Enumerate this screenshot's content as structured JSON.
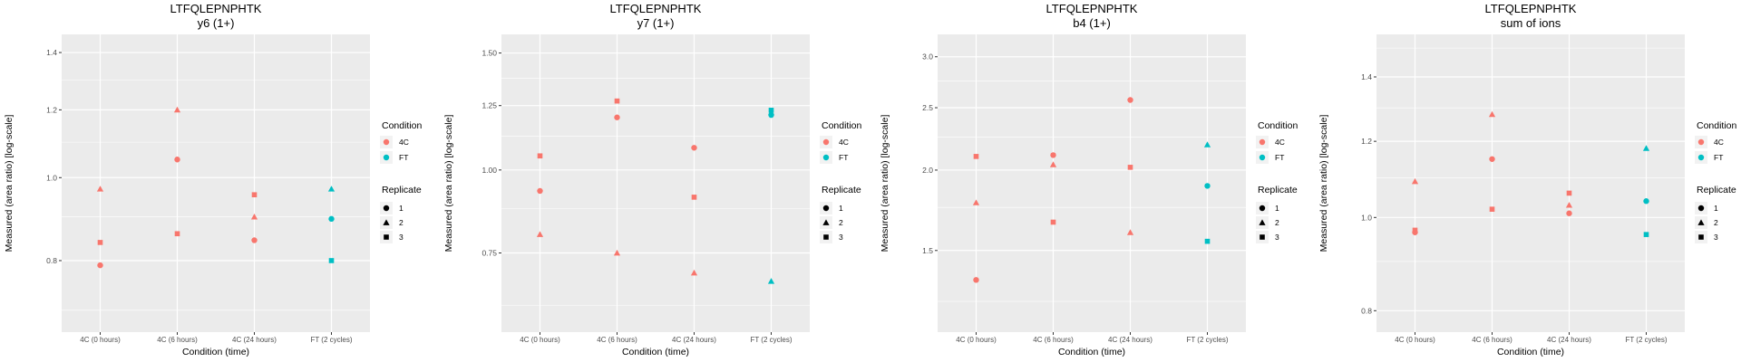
{
  "colors": {
    "condition_4C": "#F8766D",
    "condition_FT": "#00BFC4",
    "panel_bg": "#EBEBEB",
    "grid": "#FFFFFF"
  },
  "legend": {
    "condition_title": "Condition",
    "condition_entries": [
      "4C",
      "FT"
    ],
    "replicate_title": "Replicate",
    "replicate_entries": [
      "1",
      "2",
      "3"
    ],
    "replicate_shapes": [
      "circle",
      "triangle",
      "square"
    ]
  },
  "chart_data": [
    {
      "type": "scatter",
      "title": "LTFQLEPNPHTK",
      "subtitle": "y6 (1+)",
      "xlabel": "Condition (time)",
      "ylabel": "Measured (area ratio) [log-scale]",
      "yscale": "log",
      "ylim": [
        0.66,
        1.47
      ],
      "yticks": [
        0.8,
        1.0,
        1.2,
        1.4
      ],
      "ytick_labels": [
        "0.8",
        "1.0",
        "1.2",
        "1.4"
      ],
      "categories": [
        "4C (0 hours)",
        "4C (6 hours)",
        "4C (24 hours)",
        "FT (2 cycles)"
      ],
      "grid": true,
      "legend_position": "right",
      "points": [
        {
          "x": "4C (0 hours)",
          "y": 0.79,
          "condition": "4C",
          "replicate": "1"
        },
        {
          "x": "4C (0 hours)",
          "y": 0.97,
          "condition": "4C",
          "replicate": "2"
        },
        {
          "x": "4C (0 hours)",
          "y": 0.84,
          "condition": "4C",
          "replicate": "3"
        },
        {
          "x": "4C (6 hours)",
          "y": 1.05,
          "condition": "4C",
          "replicate": "1"
        },
        {
          "x": "4C (6 hours)",
          "y": 1.2,
          "condition": "4C",
          "replicate": "2"
        },
        {
          "x": "4C (6 hours)",
          "y": 0.86,
          "condition": "4C",
          "replicate": "3"
        },
        {
          "x": "4C (24 hours)",
          "y": 0.845,
          "condition": "4C",
          "replicate": "1"
        },
        {
          "x": "4C (24 hours)",
          "y": 0.9,
          "condition": "4C",
          "replicate": "2"
        },
        {
          "x": "4C (24 hours)",
          "y": 0.955,
          "condition": "4C",
          "replicate": "3"
        },
        {
          "x": "FT (2 cycles)",
          "y": 0.895,
          "condition": "FT",
          "replicate": "1"
        },
        {
          "x": "FT (2 cycles)",
          "y": 0.97,
          "condition": "FT",
          "replicate": "2"
        },
        {
          "x": "FT (2 cycles)",
          "y": 0.8,
          "condition": "FT",
          "replicate": "3"
        }
      ]
    },
    {
      "type": "scatter",
      "title": "LTFQLEPNPHTK",
      "subtitle": "y7 (1+)",
      "xlabel": "Condition (time)",
      "ylabel": "Measured (area ratio) [log-scale]",
      "yscale": "log",
      "ylim": [
        0.57,
        1.6
      ],
      "yticks": [
        0.75,
        1.0,
        1.25,
        1.5
      ],
      "ytick_labels": [
        "0.75",
        "1.00",
        "1.25",
        "1.50"
      ],
      "categories": [
        "4C (0 hours)",
        "4C (6 hours)",
        "4C (24 hours)",
        "FT (2 cycles)"
      ],
      "grid": true,
      "legend_position": "right",
      "points": [
        {
          "x": "4C (0 hours)",
          "y": 0.93,
          "condition": "4C",
          "replicate": "1"
        },
        {
          "x": "4C (0 hours)",
          "y": 0.8,
          "condition": "4C",
          "replicate": "2"
        },
        {
          "x": "4C (0 hours)",
          "y": 1.05,
          "condition": "4C",
          "replicate": "3"
        },
        {
          "x": "4C (6 hours)",
          "y": 1.2,
          "condition": "4C",
          "replicate": "1"
        },
        {
          "x": "4C (6 hours)",
          "y": 0.75,
          "condition": "4C",
          "replicate": "2"
        },
        {
          "x": "4C (6 hours)",
          "y": 1.27,
          "condition": "4C",
          "replicate": "3"
        },
        {
          "x": "4C (24 hours)",
          "y": 1.08,
          "condition": "4C",
          "replicate": "1"
        },
        {
          "x": "4C (24 hours)",
          "y": 0.7,
          "condition": "4C",
          "replicate": "2"
        },
        {
          "x": "4C (24 hours)",
          "y": 0.91,
          "condition": "4C",
          "replicate": "3"
        },
        {
          "x": "FT (2 cycles)",
          "y": 1.21,
          "condition": "FT",
          "replicate": "1"
        },
        {
          "x": "FT (2 cycles)",
          "y": 0.68,
          "condition": "FT",
          "replicate": "2"
        },
        {
          "x": "FT (2 cycles)",
          "y": 1.23,
          "condition": "FT",
          "replicate": "3"
        }
      ]
    },
    {
      "type": "scatter",
      "title": "LTFQLEPNPHTK",
      "subtitle": "b4 (1+)",
      "xlabel": "Condition (time)",
      "ylabel": "Measured (area ratio) [log-scale]",
      "yscale": "log",
      "ylim": [
        1.12,
        3.25
      ],
      "yticks": [
        1.5,
        2.0,
        2.5,
        3.0
      ],
      "ytick_labels": [
        "1.5",
        "2.0",
        "2.5",
        "3.0"
      ],
      "categories": [
        "4C (0 hours)",
        "4C (6 hours)",
        "4C (24 hours)",
        "FT (2 cycles)"
      ],
      "grid": true,
      "legend_position": "right",
      "points": [
        {
          "x": "4C (0 hours)",
          "y": 1.35,
          "condition": "4C",
          "replicate": "1"
        },
        {
          "x": "4C (0 hours)",
          "y": 1.78,
          "condition": "4C",
          "replicate": "2"
        },
        {
          "x": "4C (0 hours)",
          "y": 2.1,
          "condition": "4C",
          "replicate": "3"
        },
        {
          "x": "4C (6 hours)",
          "y": 2.11,
          "condition": "4C",
          "replicate": "1"
        },
        {
          "x": "4C (6 hours)",
          "y": 2.04,
          "condition": "4C",
          "replicate": "2"
        },
        {
          "x": "4C (6 hours)",
          "y": 1.66,
          "condition": "4C",
          "replicate": "3"
        },
        {
          "x": "4C (24 hours)",
          "y": 2.57,
          "condition": "4C",
          "replicate": "1"
        },
        {
          "x": "4C (24 hours)",
          "y": 1.6,
          "condition": "4C",
          "replicate": "2"
        },
        {
          "x": "4C (24 hours)",
          "y": 2.02,
          "condition": "4C",
          "replicate": "3"
        },
        {
          "x": "FT (2 cycles)",
          "y": 1.89,
          "condition": "FT",
          "replicate": "1"
        },
        {
          "x": "FT (2 cycles)",
          "y": 2.19,
          "condition": "FT",
          "replicate": "2"
        },
        {
          "x": "FT (2 cycles)",
          "y": 1.55,
          "condition": "FT",
          "replicate": "3"
        }
      ]
    },
    {
      "type": "scatter",
      "title": "LTFQLEPNPHTK",
      "subtitle": "sum of ions",
      "xlabel": "Condition (time)",
      "ylabel": "Measured (area ratio) [log-scale]",
      "yscale": "log",
      "ylim": [
        0.76,
        1.55
      ],
      "yticks": [
        0.8,
        1.0,
        1.2,
        1.4
      ],
      "ytick_labels": [
        "0.8",
        "1.0",
        "1.2",
        "1.4"
      ],
      "categories": [
        "4C (0 hours)",
        "4C (6 hours)",
        "4C (24 hours)",
        "FT (2 cycles)"
      ],
      "grid": true,
      "legend_position": "right",
      "points": [
        {
          "x": "4C (0 hours)",
          "y": 0.965,
          "condition": "4C",
          "replicate": "1"
        },
        {
          "x": "4C (0 hours)",
          "y": 1.09,
          "condition": "4C",
          "replicate": "2"
        },
        {
          "x": "4C (0 hours)",
          "y": 0.97,
          "condition": "4C",
          "replicate": "3"
        },
        {
          "x": "4C (6 hours)",
          "y": 1.15,
          "condition": "4C",
          "replicate": "1"
        },
        {
          "x": "4C (6 hours)",
          "y": 1.28,
          "condition": "4C",
          "replicate": "2"
        },
        {
          "x": "4C (6 hours)",
          "y": 1.02,
          "condition": "4C",
          "replicate": "3"
        },
        {
          "x": "4C (24 hours)",
          "y": 1.01,
          "condition": "4C",
          "replicate": "1"
        },
        {
          "x": "4C (24 hours)",
          "y": 1.03,
          "condition": "4C",
          "replicate": "2"
        },
        {
          "x": "4C (24 hours)",
          "y": 1.06,
          "condition": "4C",
          "replicate": "3"
        },
        {
          "x": "FT (2 cycles)",
          "y": 1.04,
          "condition": "FT",
          "replicate": "1"
        },
        {
          "x": "FT (2 cycles)",
          "y": 1.18,
          "condition": "FT",
          "replicate": "2"
        },
        {
          "x": "FT (2 cycles)",
          "y": 0.96,
          "condition": "FT",
          "replicate": "3"
        }
      ]
    }
  ]
}
